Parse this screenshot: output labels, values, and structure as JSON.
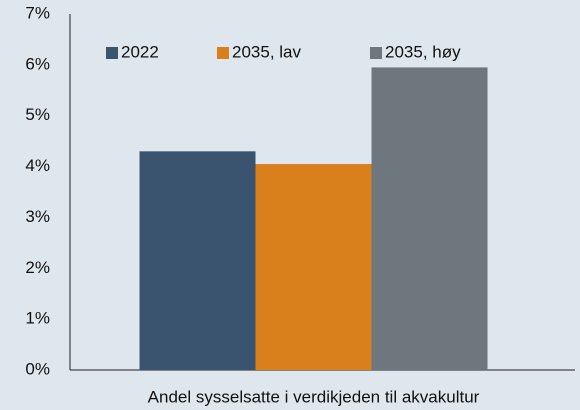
{
  "chart_data": {
    "type": "bar",
    "categories": [
      "Andel sysselsatte i verdikjeden til akvakultur"
    ],
    "series": [
      {
        "name": "2022",
        "color": "#3a5470",
        "values": [
          4.3
        ]
      },
      {
        "name": "2035, lav",
        "color": "#d97f1c",
        "values": [
          4.05
        ]
      },
      {
        "name": "2035, høy",
        "color": "#6e777e",
        "values": [
          5.95
        ]
      }
    ],
    "ylim": [
      0,
      7
    ],
    "yticks": [
      {
        "value": 0,
        "label": "0%"
      },
      {
        "value": 1,
        "label": "1%"
      },
      {
        "value": 2,
        "label": "2%"
      },
      {
        "value": 3,
        "label": "3%"
      },
      {
        "value": 4,
        "label": "4%"
      },
      {
        "value": 5,
        "label": "5%"
      },
      {
        "value": 6,
        "label": "6%"
      },
      {
        "value": 7,
        "label": "7%"
      }
    ],
    "grid": false,
    "legend": "top"
  }
}
